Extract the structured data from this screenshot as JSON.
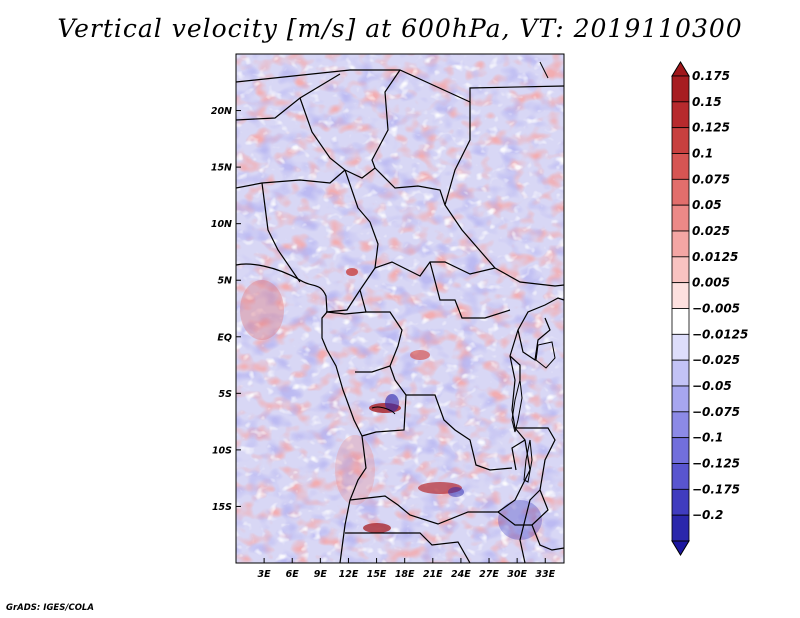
{
  "title": "Vertical velocity [m/s] at 600hPa, VT: 2019110300",
  "credit": "GrADS: IGES/COLA",
  "chart_data": {
    "type": "heatmap",
    "title": "Vertical velocity [m/s] at 600hPa, VT: 2019110300",
    "variable_units": "m/s",
    "pressure_level": "600hPa",
    "valid_time": "2019110300",
    "xlabel": "",
    "ylabel": "",
    "xlim": [
      0,
      35
    ],
    "ylim": [
      -20,
      25
    ],
    "x_ticks": [
      {
        "value": 3,
        "label": "3E"
      },
      {
        "value": 6,
        "label": "6E"
      },
      {
        "value": 9,
        "label": "9E"
      },
      {
        "value": 12,
        "label": "12E"
      },
      {
        "value": 15,
        "label": "15E"
      },
      {
        "value": 18,
        "label": "18E"
      },
      {
        "value": 21,
        "label": "21E"
      },
      {
        "value": 24,
        "label": "24E"
      },
      {
        "value": 27,
        "label": "27E"
      },
      {
        "value": 30,
        "label": "30E"
      },
      {
        "value": 33,
        "label": "33E"
      }
    ],
    "y_ticks": [
      {
        "value": 20,
        "label": "20N"
      },
      {
        "value": 15,
        "label": "15N"
      },
      {
        "value": 10,
        "label": "10N"
      },
      {
        "value": 5,
        "label": "5N"
      },
      {
        "value": 0,
        "label": "EQ"
      },
      {
        "value": -5,
        "label": "5S"
      },
      {
        "value": -10,
        "label": "10S"
      },
      {
        "value": -15,
        "label": "15S"
      }
    ],
    "colorbar": {
      "position": "right",
      "levels": [
        {
          "label": "0.175",
          "color": "#a71d21"
        },
        {
          "label": "0.15",
          "color": "#b72a2d"
        },
        {
          "label": "0.125",
          "color": "#c8403f"
        },
        {
          "label": "0.1",
          "color": "#d65553"
        },
        {
          "label": "0.075",
          "color": "#e26e6c"
        },
        {
          "label": "0.05",
          "color": "#ec8987"
        },
        {
          "label": "0.025",
          "color": "#f4a6a4"
        },
        {
          "label": "0.0125",
          "color": "#f9c3c1"
        },
        {
          "label": "0.005",
          "color": "#fde0df"
        },
        {
          "label": "−0.005",
          "color": "#ffffff"
        },
        {
          "label": "−0.0125",
          "color": "#dedefb"
        },
        {
          "label": "−0.025",
          "color": "#c3c3f6"
        },
        {
          "label": "−0.05",
          "color": "#a7a6ef"
        },
        {
          "label": "−0.075",
          "color": "#8c8ae6"
        },
        {
          "label": "−0.1",
          "color": "#726fdc"
        },
        {
          "label": "−0.125",
          "color": "#5955cf"
        },
        {
          "label": "−0.175",
          "color": "#403cbf"
        },
        {
          "label": "−0.2",
          "color": "#2b27ab"
        }
      ],
      "top_cap_color": "#a0171b",
      "bottom_cap_color": "#1c17a0"
    },
    "colors": {
      "boundary_line": "#000000",
      "background": "#ffffff"
    }
  }
}
